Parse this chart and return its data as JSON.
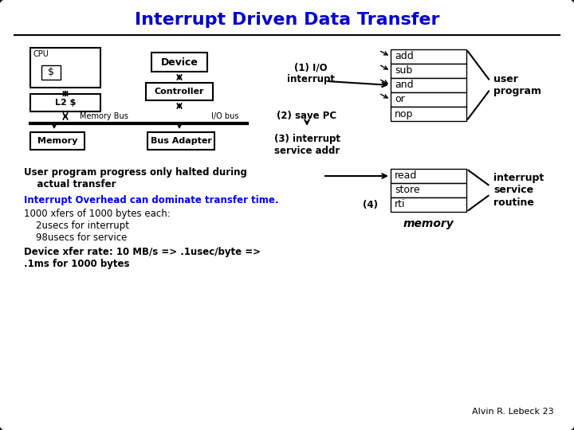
{
  "title": "Interrupt Driven Data Transfer",
  "title_color": "#0000CC",
  "title_fontsize": 16,
  "bg_color": "#FFFFFF",
  "border_color": "#000000",
  "memory_rows_top": [
    "add",
    "sub",
    "and",
    "or",
    "nop"
  ],
  "memory_rows_mid": [
    "read",
    "store"
  ],
  "memory_rows_bot": [
    "rti"
  ],
  "label_user_program": "user\nprogram",
  "label_interrupt_service": "interrupt\nservice\nroutine",
  "label_memory": "memory",
  "label_1": "(1) I/O\ninterrupt",
  "label_2": "(2) save PC",
  "label_3": "(3) interrupt\nservice addr",
  "label_4": "(4)",
  "text_body1": "User program progress only halted during\n    actual transfer",
  "text_overhead": "Interrupt Overhead can dominate transfer time.",
  "text_body2": "1000 xfers of 1000 bytes each:\n    2usecs for interrupt\n    98usecs for service",
  "text_body3": "Device xfer rate: 10 MB/s => .1usec/byte =>\n.1ms for 1000 bytes",
  "text_footer": "Alvin R. Lebeck 23",
  "overhead_color": "#0000FF",
  "body_color": "#000000"
}
